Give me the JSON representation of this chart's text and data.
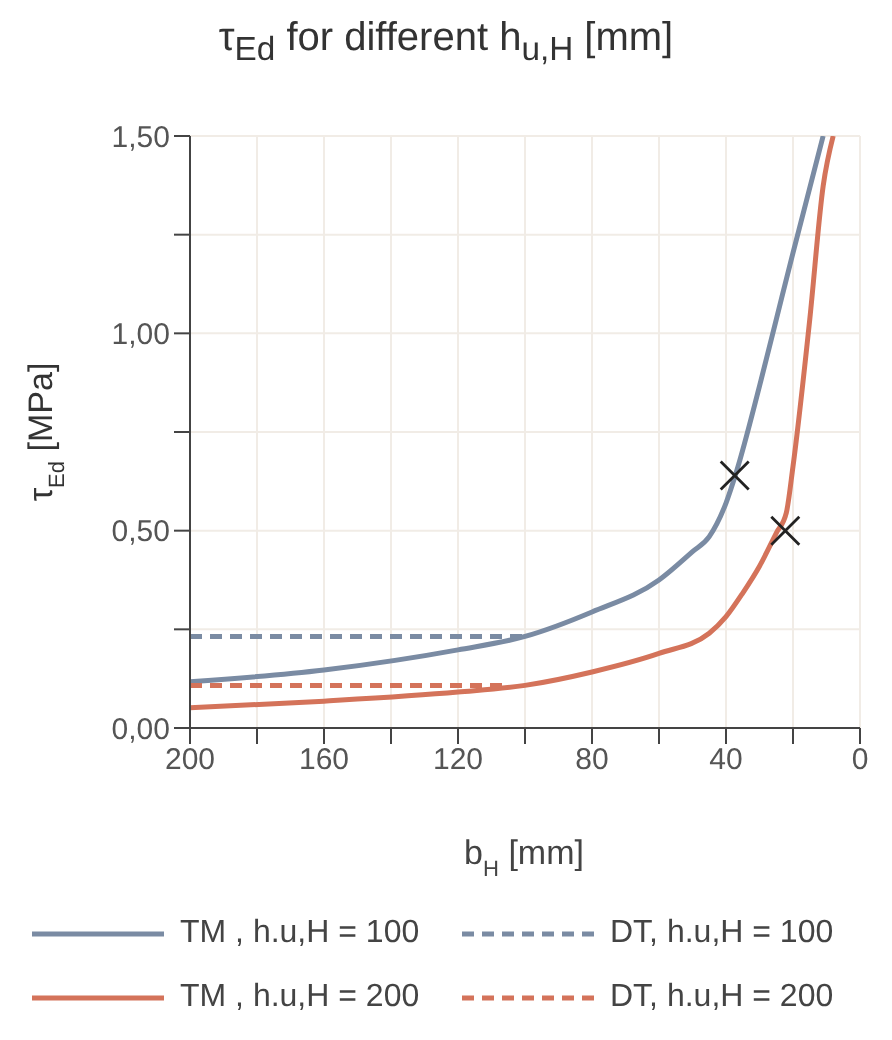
{
  "chart_data": {
    "type": "line",
    "title": "τ$_{Ed}$ for different h$_{u,H}$ [mm]",
    "xlabel": "b$_{H}$ [mm]",
    "ylabel": "τ$_{Ed}$ [MPa]",
    "xlim": [
      200,
      0
    ],
    "xticks": [
      200,
      {
        "value": 180,
        "label": null
      },
      160,
      {
        "value": 140,
        "label": null
      },
      120,
      {
        "value": 100,
        "label": null
      },
      80,
      {
        "value": 60,
        "label": null
      },
      40,
      {
        "value": 20,
        "label": null
      },
      0
    ],
    "ylim": [
      0,
      1.5
    ],
    "yticks": [
      {
        "value": 0,
        "label": "0,00"
      },
      {
        "value": 0.25,
        "label": null
      },
      {
        "value": 0.5,
        "label": "0,50"
      },
      {
        "value": 0.75,
        "label": null
      },
      {
        "value": 1,
        "label": "1,00"
      },
      {
        "value": 1.25,
        "label": null
      },
      {
        "value": 1.5,
        "label": "1,50"
      }
    ],
    "grid": true,
    "legend": "bottom",
    "marker": "none",
    "series": [
      {
        "name": "TM , h.u,H = 100",
        "color": "#7a8ba3",
        "line_style": "solid",
        "x": [
          200,
          160,
          120,
          100,
          80,
          60,
          50,
          45,
          40,
          37,
          30,
          25,
          20,
          11
        ],
        "values": [
          0.117,
          0.147,
          0.198,
          0.232,
          0.294,
          0.375,
          0.447,
          0.485,
          0.57,
          0.646,
          0.866,
          1.035,
          1.204,
          1.5
        ]
      },
      {
        "name": "DT, h.u,H = 100",
        "color": "#7a8ba3",
        "line_style": "dashed",
        "x": [
          200,
          100
        ],
        "values": [
          0.232,
          0.232
        ]
      },
      {
        "name": "TM , h.u,H = 200",
        "color": "#d4735a",
        "line_style": "solid",
        "x": [
          200,
          160,
          120,
          100,
          80,
          60,
          45,
          40,
          35,
          30,
          25,
          22,
          20,
          15,
          11,
          8
        ],
        "values": [
          0.051,
          0.068,
          0.091,
          0.108,
          0.142,
          0.189,
          0.24,
          0.282,
          0.342,
          0.41,
          0.494,
          0.545,
          0.663,
          1.035,
          1.373,
          1.5
        ]
      },
      {
        "name": "DT, h.u,H = 200",
        "color": "#d4735a",
        "line_style": "dashed",
        "x": [
          200,
          105
        ],
        "values": [
          0.108,
          0.108
        ]
      },
      {
        "type": "scatter",
        "color": "#222222",
        "marker": "cross",
        "x": [
          37.4,
          22.3
        ],
        "values": [
          0.64,
          0.5
        ]
      }
    ]
  }
}
